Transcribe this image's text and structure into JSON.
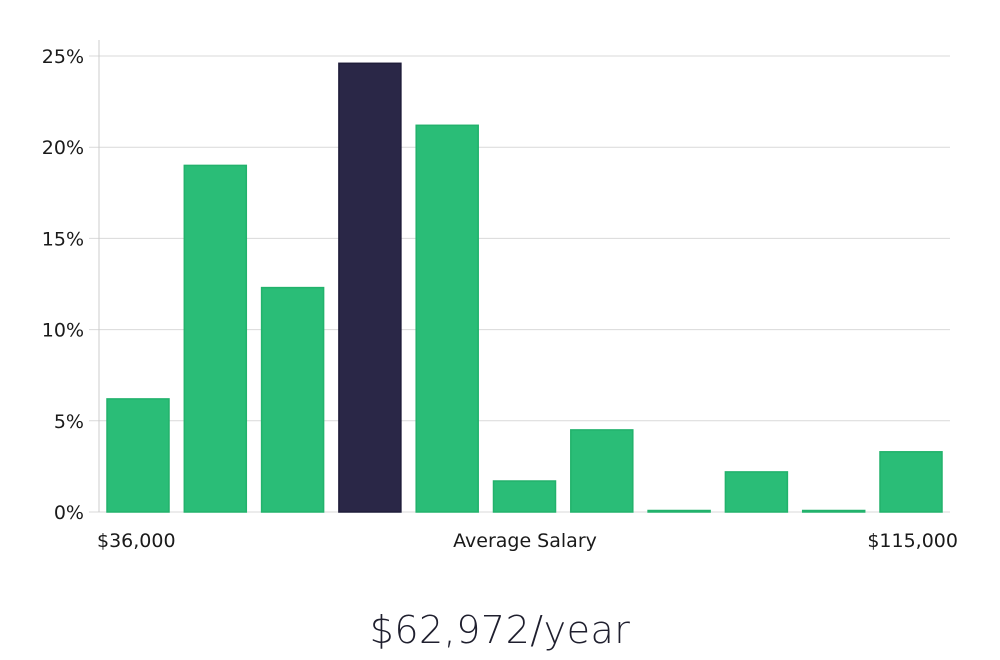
{
  "chart_data": {
    "type": "bar",
    "title": "",
    "xlabel": "Average Salary",
    "ylabel": "",
    "x_range_labels": [
      "$36,000",
      "$115,000"
    ],
    "ylim": [
      0,
      25
    ],
    "yticks": [
      0,
      5,
      10,
      15,
      20,
      25
    ],
    "ytick_labels": [
      "0%",
      "5%",
      "10%",
      "15%",
      "20%",
      "25%"
    ],
    "grid": true,
    "values": [
      6.2,
      19.0,
      12.3,
      24.6,
      21.2,
      1.7,
      4.5,
      0.05,
      2.2,
      0.05,
      3.3
    ],
    "highlight_index": 3,
    "colors": {
      "bar": "#2abd77",
      "bar_edge": "#22b26c",
      "highlight": "#2a2747",
      "highlight_edge": "#1f1d3a",
      "grid": "#d9d9d9",
      "axis": "#cccccc"
    }
  },
  "average_salary": "$62,972/year"
}
